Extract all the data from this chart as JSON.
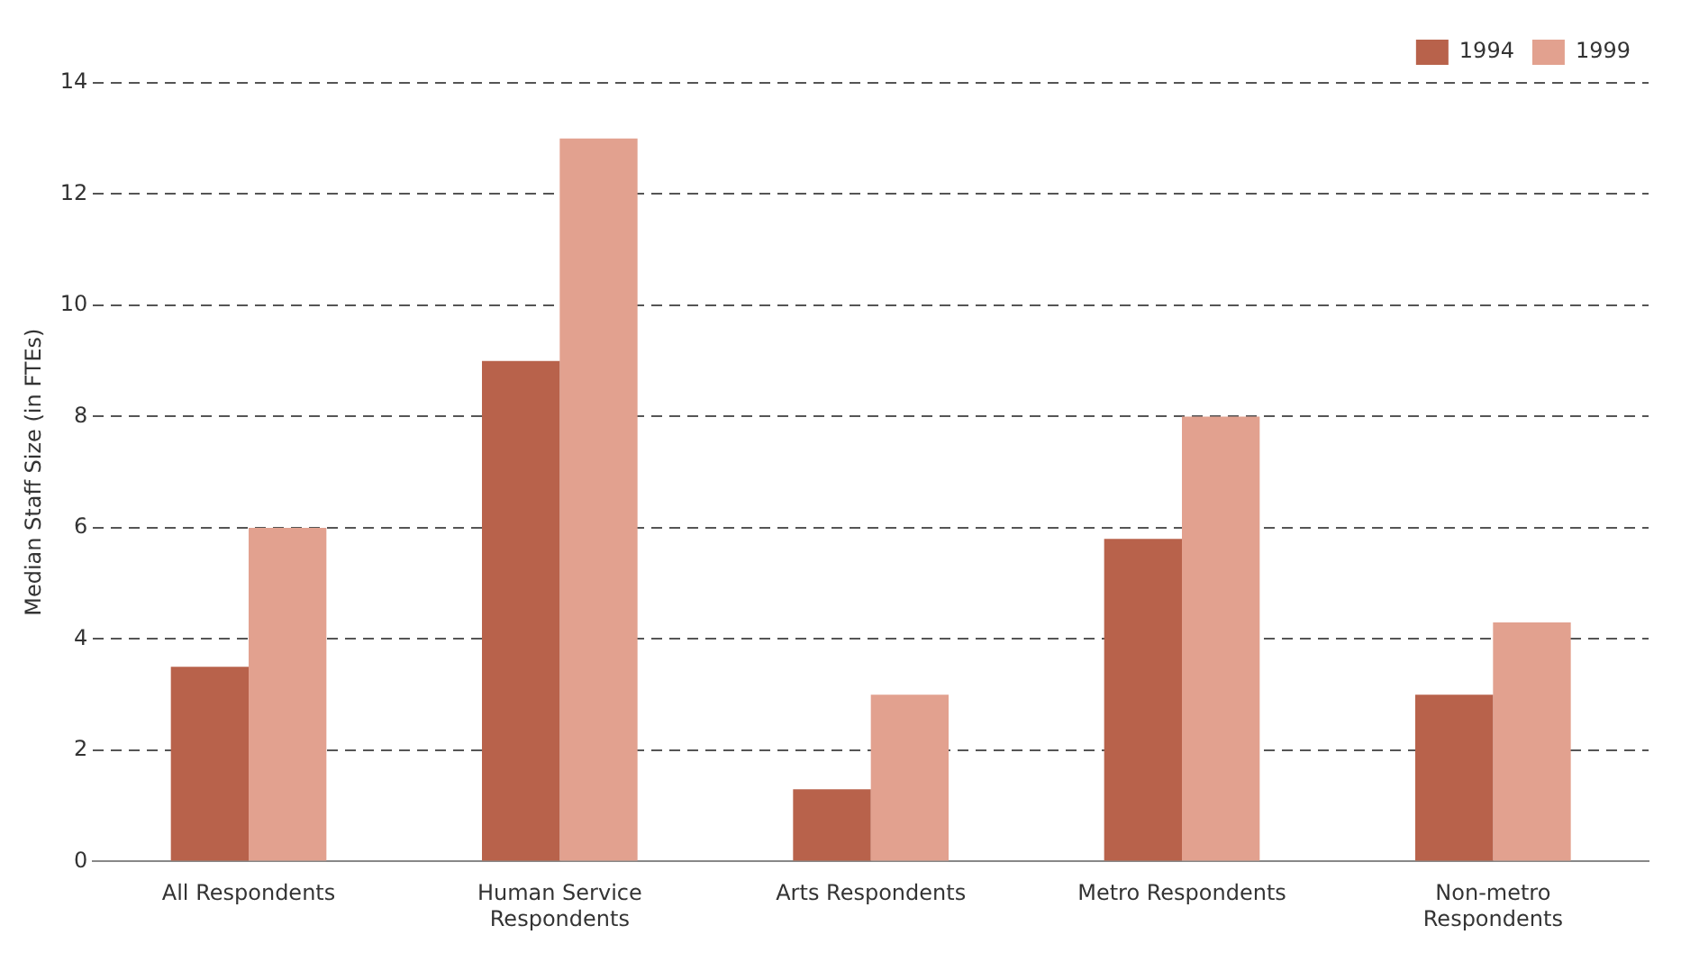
{
  "chart_data": {
    "type": "bar",
    "ylabel": "Median Staff Size (in FTEs)",
    "categories": [
      "All Respondents",
      "Human Service Respondents",
      "Arts Respondents",
      "Metro Respondents",
      "Non-metro Respondents"
    ],
    "series": [
      {
        "name": "1994",
        "color": "#b8624b",
        "values": [
          3.5,
          9,
          1.3,
          5.8,
          3
        ]
      },
      {
        "name": "1999",
        "color": "#e2a18f",
        "values": [
          6,
          13,
          3,
          8,
          4.3
        ]
      }
    ],
    "ylim": [
      0,
      14
    ],
    "yticks": [
      0,
      2,
      4,
      6,
      8,
      10,
      12,
      14
    ],
    "grid": "y",
    "legend": "top right"
  }
}
